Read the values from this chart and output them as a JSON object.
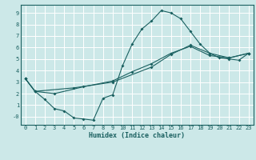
{
  "xlabel": "Humidex (Indice chaleur)",
  "xlim": [
    -0.5,
    23.5
  ],
  "ylim": [
    -0.7,
    9.7
  ],
  "xticks": [
    0,
    1,
    2,
    3,
    4,
    5,
    6,
    7,
    8,
    9,
    10,
    11,
    12,
    13,
    14,
    15,
    16,
    17,
    18,
    19,
    20,
    21,
    22,
    23
  ],
  "yticks": [
    0,
    1,
    2,
    3,
    4,
    5,
    6,
    7,
    8,
    9
  ],
  "ytick_labels": [
    "-0",
    "1",
    "2",
    "3",
    "4",
    "5",
    "6",
    "7",
    "8",
    "9"
  ],
  "background_color": "#cce8e8",
  "grid_color": "#ffffff",
  "line_color": "#1a6060",
  "line1_x": [
    0,
    1,
    2,
    3,
    4,
    5,
    6,
    7,
    8,
    9,
    10,
    11,
    12,
    13,
    14,
    15,
    16,
    17,
    18,
    19,
    20,
    21,
    22,
    23
  ],
  "line1_y": [
    3.3,
    2.2,
    1.5,
    0.7,
    0.5,
    -0.1,
    -0.2,
    -0.3,
    1.6,
    1.9,
    4.4,
    6.3,
    7.6,
    8.3,
    9.2,
    9.0,
    8.5,
    7.4,
    6.3,
    5.5,
    5.1,
    5.0,
    4.9,
    5.5
  ],
  "line2_x": [
    0,
    1,
    3,
    6,
    9,
    11,
    13,
    15,
    17,
    19,
    21,
    23
  ],
  "line2_y": [
    3.3,
    2.2,
    2.0,
    2.6,
    3.1,
    3.9,
    4.6,
    5.5,
    6.1,
    5.3,
    5.1,
    5.5
  ],
  "line3_x": [
    0,
    1,
    5,
    9,
    13,
    15,
    17,
    19,
    21,
    23
  ],
  "line3_y": [
    3.3,
    2.2,
    2.5,
    3.0,
    4.3,
    5.4,
    6.2,
    5.5,
    5.1,
    5.5
  ],
  "marker_size": 2.0,
  "line_width": 0.8,
  "tick_fontsize": 5.0,
  "xlabel_fontsize": 6.0
}
